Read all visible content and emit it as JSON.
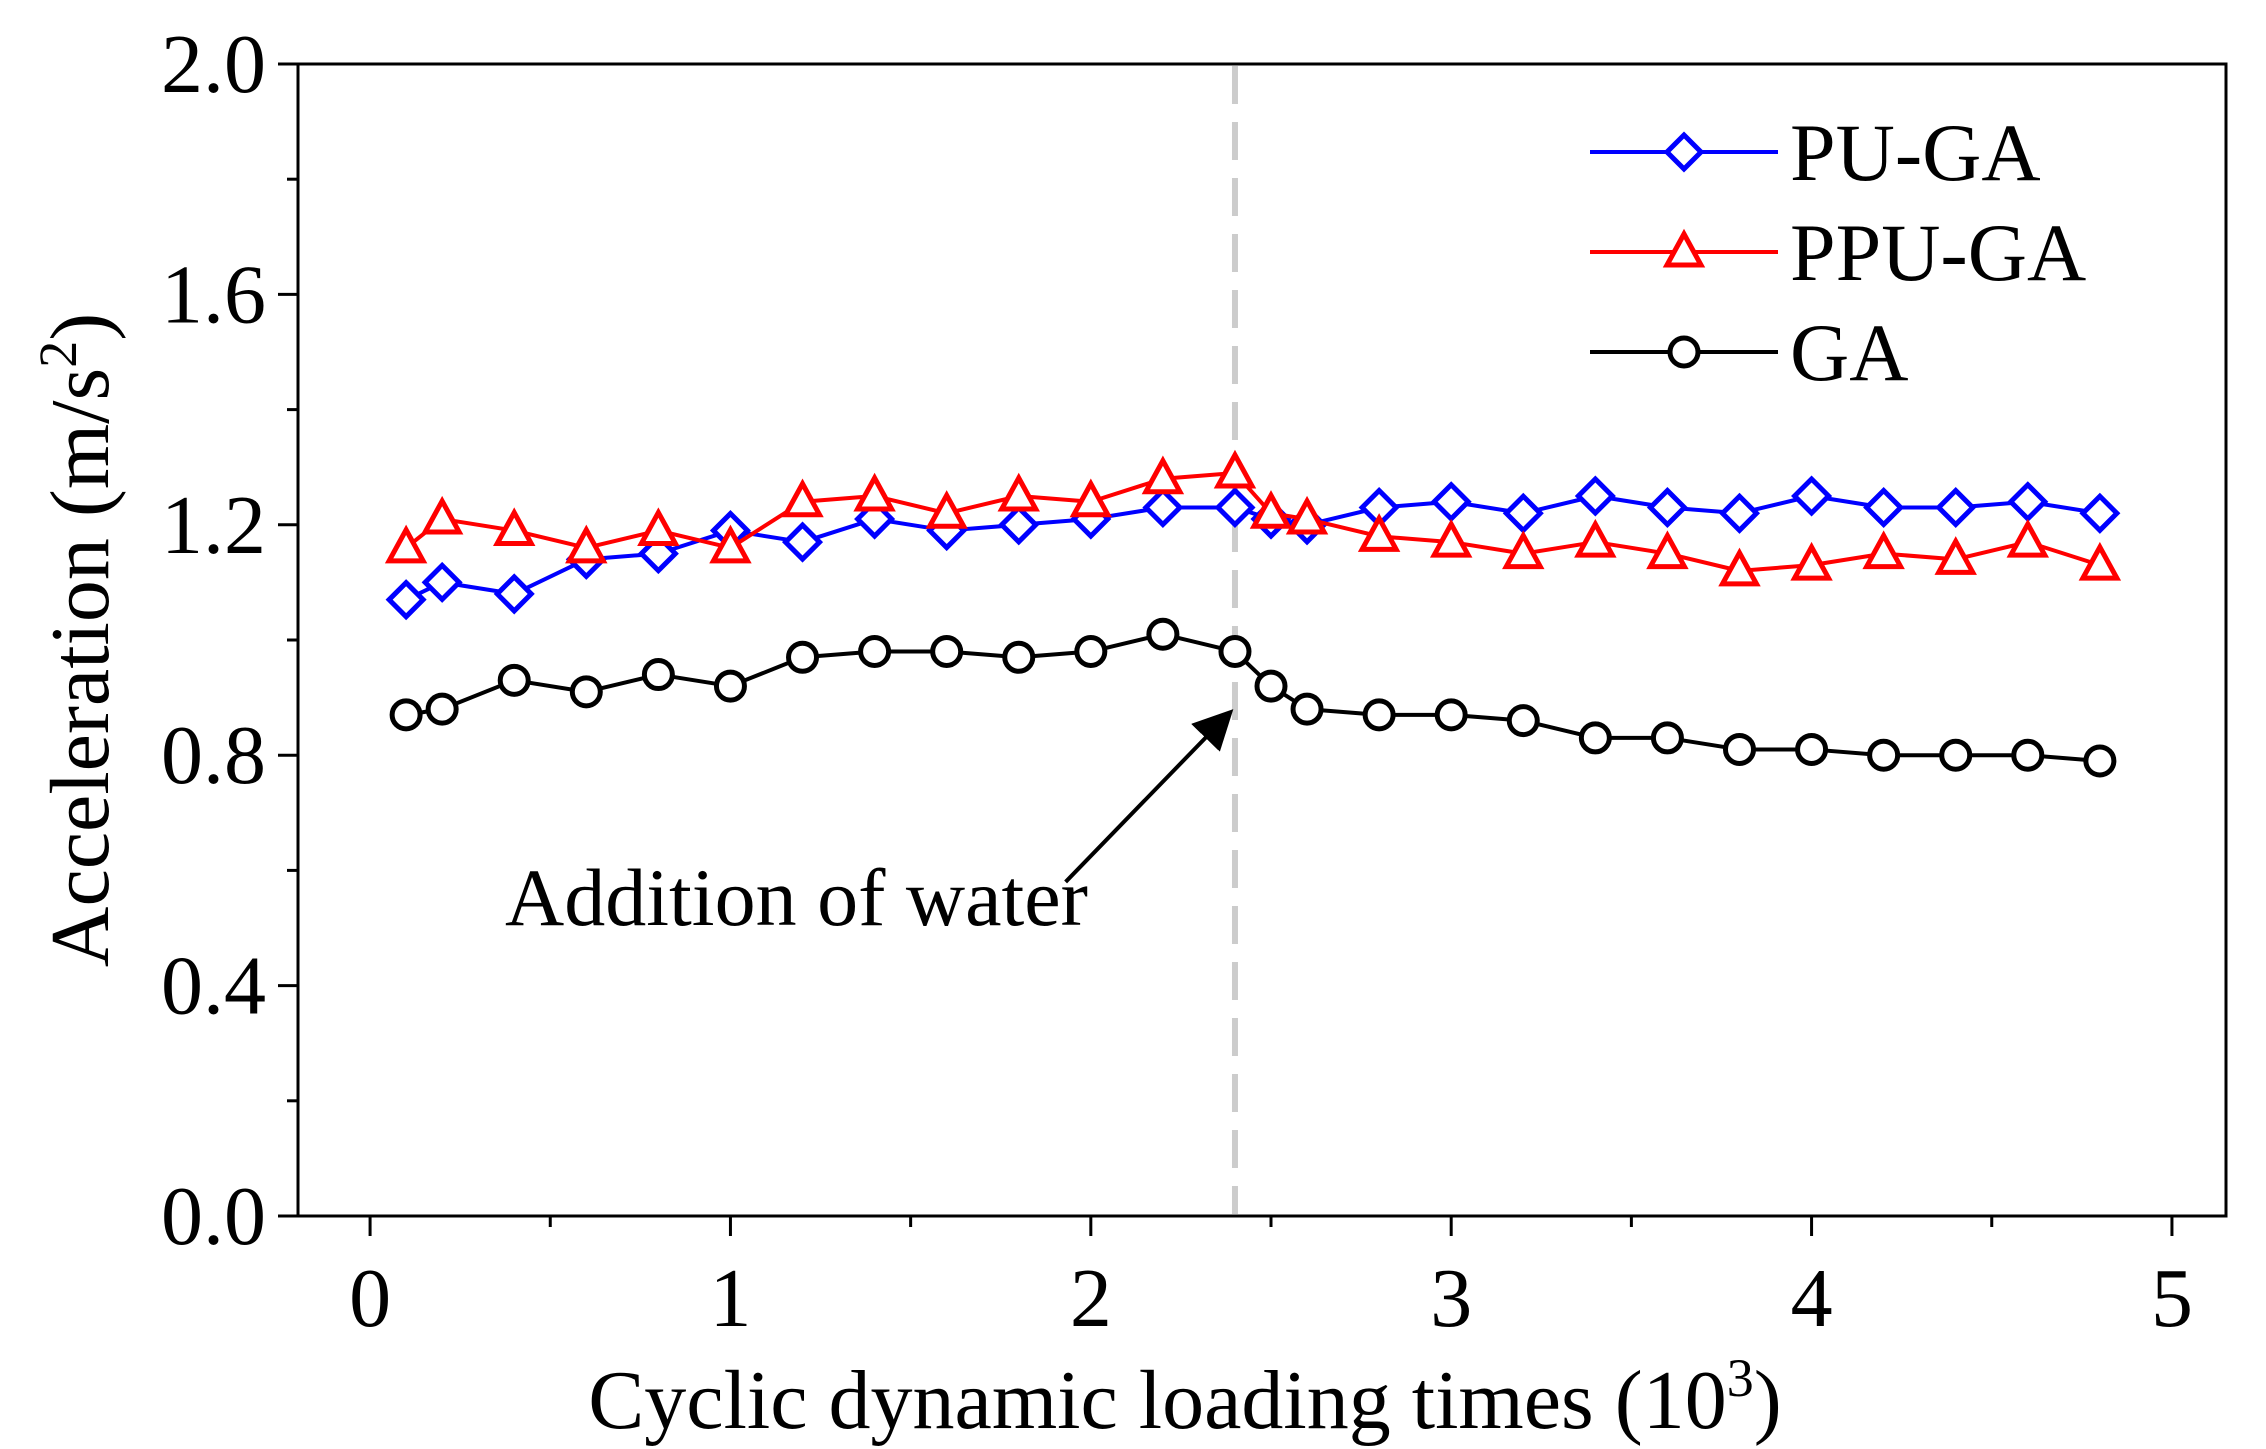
{
  "chart_data": {
    "type": "line",
    "xlabel": "Cyclic dynamic loading times (10",
    "xlabel_sup": "3",
    "xlabel_end": ")",
    "ylabel": "Acceleration (m/s",
    "ylabel_sup": "2",
    "ylabel_end": ")",
    "xlim": [
      -0.2,
      5.15
    ],
    "ylim": [
      0.0,
      2.0
    ],
    "xticks": [
      0,
      1,
      2,
      3,
      4,
      5
    ],
    "xtick_labels": [
      "0",
      "1",
      "2",
      "3",
      "4",
      "5"
    ],
    "yticks": [
      0.0,
      0.4,
      0.8,
      1.2,
      1.6,
      2.0
    ],
    "ytick_labels": [
      "0.0",
      "0.4",
      "0.8",
      "1.2",
      "1.6",
      "2.0"
    ],
    "grid": false,
    "legend_position": "top-right",
    "series": [
      {
        "name": "PU-GA",
        "color": "#0000ff",
        "marker": "diamond",
        "x": [
          0.1,
          0.2,
          0.4,
          0.6,
          0.8,
          1.0,
          1.2,
          1.4,
          1.6,
          1.8,
          2.0,
          2.2,
          2.4,
          2.5,
          2.6,
          2.8,
          3.0,
          3.2,
          3.4,
          3.6,
          3.8,
          4.0,
          4.2,
          4.4,
          4.6,
          4.8
        ],
        "values": [
          1.07,
          1.1,
          1.08,
          1.14,
          1.15,
          1.19,
          1.17,
          1.21,
          1.19,
          1.2,
          1.21,
          1.23,
          1.23,
          1.21,
          1.2,
          1.23,
          1.24,
          1.22,
          1.25,
          1.23,
          1.22,
          1.25,
          1.23,
          1.23,
          1.24,
          1.22
        ]
      },
      {
        "name": "PPU-GA",
        "color": "#ff0000",
        "marker": "triangle",
        "x": [
          0.1,
          0.2,
          0.4,
          0.6,
          0.8,
          1.0,
          1.2,
          1.4,
          1.6,
          1.8,
          2.0,
          2.2,
          2.4,
          2.5,
          2.6,
          2.8,
          3.0,
          3.2,
          3.4,
          3.6,
          3.8,
          4.0,
          4.2,
          4.4,
          4.6,
          4.8
        ],
        "values": [
          1.16,
          1.21,
          1.19,
          1.16,
          1.19,
          1.16,
          1.24,
          1.25,
          1.22,
          1.25,
          1.24,
          1.28,
          1.29,
          1.22,
          1.21,
          1.18,
          1.17,
          1.15,
          1.17,
          1.15,
          1.12,
          1.13,
          1.15,
          1.14,
          1.17,
          1.13
        ]
      },
      {
        "name": "GA",
        "color": "#000000",
        "marker": "circle",
        "x": [
          0.1,
          0.2,
          0.4,
          0.6,
          0.8,
          1.0,
          1.2,
          1.4,
          1.6,
          1.8,
          2.0,
          2.2,
          2.4,
          2.5,
          2.6,
          2.8,
          3.0,
          3.2,
          3.4,
          3.6,
          3.8,
          4.0,
          4.2,
          4.4,
          4.6,
          4.8
        ],
        "values": [
          0.87,
          0.88,
          0.93,
          0.91,
          0.94,
          0.92,
          0.97,
          0.98,
          0.98,
          0.97,
          0.98,
          1.01,
          0.98,
          0.92,
          0.88,
          0.87,
          0.87,
          0.86,
          0.83,
          0.83,
          0.81,
          0.81,
          0.8,
          0.8,
          0.8,
          0.79
        ]
      }
    ],
    "reference_line": {
      "x": 2.4,
      "color": "#cccccc",
      "style": "dashed"
    },
    "annotation": {
      "text": "Addition of water",
      "arrow_target": [
        2.38,
        0.87
      ],
      "arrow_start": [
        1.93,
        0.58
      ]
    }
  }
}
